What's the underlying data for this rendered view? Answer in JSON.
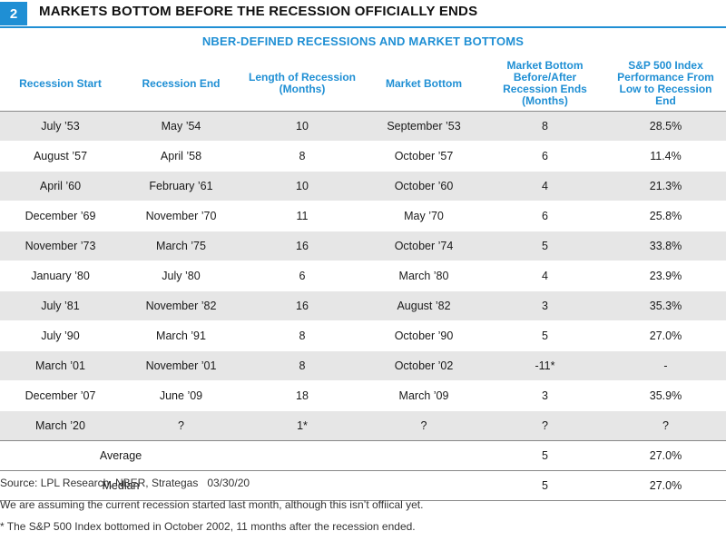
{
  "figure": {
    "number": "2",
    "title": "MARKETS BOTTOM BEFORE THE RECESSION OFFICIALLY ENDS",
    "subtitle": "NBER-DEFINED RECESSIONS AND MARKET BOTTOMS",
    "accent_color": "#1f8fd4",
    "stripe_color": "#e6e6e6"
  },
  "chart_data": {
    "type": "table",
    "columns": [
      "Recession Start",
      "Recession End",
      "Length of Recession (Months)",
      "Market Bottom",
      "Market Bottom Before/After Recession Ends (Months)",
      "S&P 500 Index Performance From Low to Recession End"
    ],
    "rows": [
      [
        "July ’53",
        "May ’54",
        "10",
        "September ’53",
        "8",
        "28.5%"
      ],
      [
        "August ’57",
        "April ’58",
        "8",
        "October ’57",
        "6",
        "11.4%"
      ],
      [
        "April ’60",
        "February ’61",
        "10",
        "October ’60",
        "4",
        "21.3%"
      ],
      [
        "December ’69",
        "November ’70",
        "11",
        "May ’70",
        "6",
        "25.8%"
      ],
      [
        "November ’73",
        "March ’75",
        "16",
        "October ’74",
        "5",
        "33.8%"
      ],
      [
        "January ’80",
        "July ’80",
        "6",
        "March ’80",
        "4",
        "23.9%"
      ],
      [
        "July ’81",
        "November ’82",
        "16",
        "August ’82",
        "3",
        "35.3%"
      ],
      [
        "July ’90",
        "March ’91",
        "8",
        "October ’90",
        "5",
        "27.0%"
      ],
      [
        "March ’01",
        "November ’01",
        "8",
        "October ’02",
        "-11*",
        "-"
      ],
      [
        "December ’07",
        "June ’09",
        "18",
        "March ’09",
        "3",
        "35.9%"
      ],
      [
        "March ’20",
        "?",
        "1*",
        "?",
        "?",
        "?"
      ]
    ],
    "summary": [
      {
        "label": "Average",
        "months": "5",
        "performance": "27.0%"
      },
      {
        "label": "Median",
        "months": "5",
        "performance": "27.0%"
      }
    ]
  },
  "footer": {
    "source": "Source: LPL Research, NBER, Strategas",
    "date": "03/30/20",
    "note1": "We are assuming the current recession started last month, although this isn’t offiical yet.",
    "note2": "* The S&P 500 Index bottomed in October 2002, 11 months after the recession ended."
  }
}
